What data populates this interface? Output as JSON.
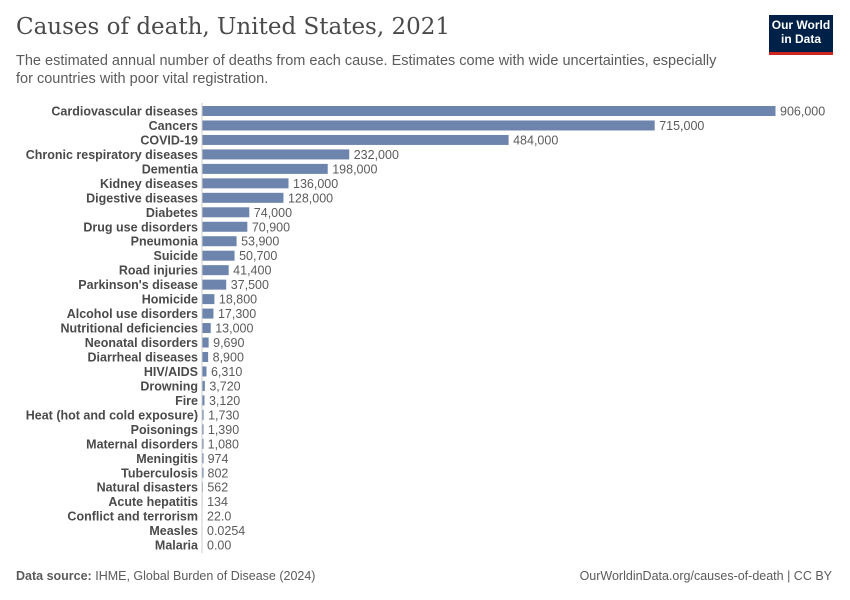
{
  "header": {
    "title": "Causes of death, United States, 2021",
    "subtitle": "The estimated annual number of deaths from each cause. Estimates come with wide uncertainties, especially for countries with poor vital registration.",
    "logo_line1": "Our World",
    "logo_line2": "in Data"
  },
  "footer": {
    "source_label": "Data source:",
    "source": "IHME, Global Burden of Disease (2024)",
    "url": "OurWorldinData.org/causes-of-death | CC BY"
  },
  "colors": {
    "bar": "#6d84ad",
    "logo_bg": "#002147",
    "logo_accent": "#ce261e"
  },
  "chart_data": {
    "type": "bar",
    "orientation": "horizontal",
    "categories": [
      "Cardiovascular diseases",
      "Cancers",
      "COVID-19",
      "Chronic respiratory diseases",
      "Dementia",
      "Kidney diseases",
      "Digestive diseases",
      "Diabetes",
      "Drug use disorders",
      "Pneumonia",
      "Suicide",
      "Road injuries",
      "Parkinson's disease",
      "Homicide",
      "Alcohol use disorders",
      "Nutritional deficiencies",
      "Neonatal disorders",
      "Diarrheal diseases",
      "HIV/AIDS",
      "Drowning",
      "Fire",
      "Heat (hot and cold exposure)",
      "Poisonings",
      "Maternal disorders",
      "Meningitis",
      "Tuberculosis",
      "Natural disasters",
      "Acute hepatitis",
      "Conflict and terrorism",
      "Measles",
      "Malaria"
    ],
    "values": [
      906000,
      715000,
      484000,
      232000,
      198000,
      136000,
      128000,
      74000,
      70900,
      53900,
      50700,
      41400,
      37500,
      18800,
      17300,
      13000,
      9690,
      8900,
      6310,
      3720,
      3120,
      1730,
      1390,
      1080,
      974,
      802,
      562,
      134,
      22.0,
      0.0254,
      0.0
    ],
    "value_labels": [
      "906,000",
      "715,000",
      "484,000",
      "232,000",
      "198,000",
      "136,000",
      "128,000",
      "74,000",
      "70,900",
      "53,900",
      "50,700",
      "41,400",
      "37,500",
      "18,800",
      "17,300",
      "13,000",
      "9,690",
      "8,900",
      "6,310",
      "3,720",
      "3,120",
      "1,730",
      "1,390",
      "1,080",
      "974",
      "802",
      "562",
      "134",
      "22.0",
      "0.0254",
      "0.00"
    ],
    "title": "Causes of death, United States, 2021",
    "xlabel": "",
    "ylabel": ""
  }
}
